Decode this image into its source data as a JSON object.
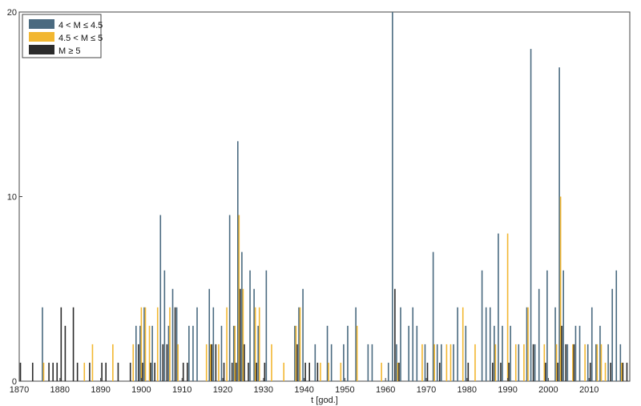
{
  "chart_data": {
    "type": "bar",
    "title": "",
    "xlabel": "t [god.]",
    "ylabel": "",
    "xlim": [
      1870,
      2020
    ],
    "ylim": [
      0,
      20
    ],
    "xticks": [
      1870,
      1880,
      1890,
      1900,
      1910,
      1920,
      1930,
      1940,
      1950,
      1960,
      1970,
      1980,
      1990,
      2000,
      2010
    ],
    "yticks": [
      0,
      10,
      20
    ],
    "grid": false,
    "legend_position": "top-left",
    "series": [
      {
        "name": "4 < M ≤ 4.5",
        "color": "#4a6a80",
        "points": [
          {
            "x": 1876,
            "y": 4
          },
          {
            "x": 1899,
            "y": 3
          },
          {
            "x": 1900,
            "y": 3
          },
          {
            "x": 1901,
            "y": 4
          },
          {
            "x": 1903,
            "y": 3
          },
          {
            "x": 1905,
            "y": 9
          },
          {
            "x": 1906,
            "y": 6
          },
          {
            "x": 1907,
            "y": 3
          },
          {
            "x": 1908,
            "y": 5
          },
          {
            "x": 1909,
            "y": 4
          },
          {
            "x": 1912,
            "y": 3
          },
          {
            "x": 1913,
            "y": 3
          },
          {
            "x": 1914,
            "y": 4
          },
          {
            "x": 1917,
            "y": 5
          },
          {
            "x": 1918,
            "y": 4
          },
          {
            "x": 1920,
            "y": 3
          },
          {
            "x": 1922,
            "y": 9
          },
          {
            "x": 1923,
            "y": 3
          },
          {
            "x": 1924,
            "y": 13
          },
          {
            "x": 1925,
            "y": 7
          },
          {
            "x": 1927,
            "y": 6
          },
          {
            "x": 1928,
            "y": 5
          },
          {
            "x": 1929,
            "y": 3
          },
          {
            "x": 1931,
            "y": 6
          },
          {
            "x": 1938,
            "y": 3
          },
          {
            "x": 1939,
            "y": 4
          },
          {
            "x": 1940,
            "y": 5
          },
          {
            "x": 1943,
            "y": 2
          },
          {
            "x": 1946,
            "y": 3
          },
          {
            "x": 1947,
            "y": 2
          },
          {
            "x": 1950,
            "y": 2
          },
          {
            "x": 1951,
            "y": 3
          },
          {
            "x": 1953,
            "y": 4
          },
          {
            "x": 1956,
            "y": 2
          },
          {
            "x": 1957,
            "y": 2
          },
          {
            "x": 1961,
            "y": 1
          },
          {
            "x": 1962,
            "y": 20
          },
          {
            "x": 1963,
            "y": 2
          },
          {
            "x": 1964,
            "y": 4
          },
          {
            "x": 1966,
            "y": 3
          },
          {
            "x": 1967,
            "y": 4
          },
          {
            "x": 1968,
            "y": 3
          },
          {
            "x": 1970,
            "y": 2
          },
          {
            "x": 1972,
            "y": 7
          },
          {
            "x": 1973,
            "y": 2
          },
          {
            "x": 1974,
            "y": 2
          },
          {
            "x": 1977,
            "y": 2
          },
          {
            "x": 1978,
            "y": 4
          },
          {
            "x": 1980,
            "y": 3
          },
          {
            "x": 1984,
            "y": 6
          },
          {
            "x": 1985,
            "y": 4
          },
          {
            "x": 1986,
            "y": 4
          },
          {
            "x": 1987,
            "y": 3
          },
          {
            "x": 1988,
            "y": 8
          },
          {
            "x": 1989,
            "y": 3
          },
          {
            "x": 1991,
            "y": 3
          },
          {
            "x": 1993,
            "y": 2
          },
          {
            "x": 1995,
            "y": 4
          },
          {
            "x": 1996,
            "y": 18
          },
          {
            "x": 1997,
            "y": 2
          },
          {
            "x": 1998,
            "y": 5
          },
          {
            "x": 2000,
            "y": 6
          },
          {
            "x": 2002,
            "y": 4
          },
          {
            "x": 2003,
            "y": 17
          },
          {
            "x": 2004,
            "y": 6
          },
          {
            "x": 2005,
            "y": 2
          },
          {
            "x": 2007,
            "y": 3
          },
          {
            "x": 2008,
            "y": 3
          },
          {
            "x": 2010,
            "y": 2
          },
          {
            "x": 2011,
            "y": 4
          },
          {
            "x": 2012,
            "y": 2
          },
          {
            "x": 2013,
            "y": 3
          },
          {
            "x": 2015,
            "y": 2
          },
          {
            "x": 2016,
            "y": 5
          },
          {
            "x": 2017,
            "y": 6
          },
          {
            "x": 2018,
            "y": 2
          }
        ]
      },
      {
        "name": "4.5 < M ≤ 5",
        "color": "#f2b731",
        "points": [
          {
            "x": 1876,
            "y": 1
          },
          {
            "x": 1886,
            "y": 1
          },
          {
            "x": 1888,
            "y": 2
          },
          {
            "x": 1893,
            "y": 2
          },
          {
            "x": 1898,
            "y": 2
          },
          {
            "x": 1900,
            "y": 4
          },
          {
            "x": 1901,
            "y": 4
          },
          {
            "x": 1902,
            "y": 3
          },
          {
            "x": 1904,
            "y": 4
          },
          {
            "x": 1907,
            "y": 4
          },
          {
            "x": 1909,
            "y": 2
          },
          {
            "x": 1916,
            "y": 2
          },
          {
            "x": 1917,
            "y": 2
          },
          {
            "x": 1919,
            "y": 2
          },
          {
            "x": 1921,
            "y": 4
          },
          {
            "x": 1923,
            "y": 3
          },
          {
            "x": 1924,
            "y": 9
          },
          {
            "x": 1925,
            "y": 5
          },
          {
            "x": 1928,
            "y": 4
          },
          {
            "x": 1929,
            "y": 4
          },
          {
            "x": 1932,
            "y": 2
          },
          {
            "x": 1935,
            "y": 1
          },
          {
            "x": 1938,
            "y": 3
          },
          {
            "x": 1939,
            "y": 4
          },
          {
            "x": 1944,
            "y": 1
          },
          {
            "x": 1946,
            "y": 1
          },
          {
            "x": 1949,
            "y": 1
          },
          {
            "x": 1953,
            "y": 3
          },
          {
            "x": 1959,
            "y": 1
          },
          {
            "x": 1963,
            "y": 1
          },
          {
            "x": 1969,
            "y": 2
          },
          {
            "x": 1972,
            "y": 2
          },
          {
            "x": 1975,
            "y": 2
          },
          {
            "x": 1976,
            "y": 2
          },
          {
            "x": 1979,
            "y": 4
          },
          {
            "x": 1982,
            "y": 2
          },
          {
            "x": 1987,
            "y": 2
          },
          {
            "x": 1990,
            "y": 8
          },
          {
            "x": 1992,
            "y": 2
          },
          {
            "x": 1994,
            "y": 2
          },
          {
            "x": 1995,
            "y": 4
          },
          {
            "x": 1999,
            "y": 2
          },
          {
            "x": 2002,
            "y": 2
          },
          {
            "x": 2003,
            "y": 10
          },
          {
            "x": 2006,
            "y": 2
          },
          {
            "x": 2009,
            "y": 2
          },
          {
            "x": 2012,
            "y": 2
          },
          {
            "x": 2013,
            "y": 2
          },
          {
            "x": 2014,
            "y": 1
          },
          {
            "x": 2018,
            "y": 1
          }
        ]
      },
      {
        "name": "M ≥ 5",
        "color": "#2b2b2b",
        "points": [
          {
            "x": 1870,
            "y": 1
          },
          {
            "x": 1873,
            "y": 1
          },
          {
            "x": 1877,
            "y": 1
          },
          {
            "x": 1878,
            "y": 1
          },
          {
            "x": 1879,
            "y": 1
          },
          {
            "x": 1880,
            "y": 4
          },
          {
            "x": 1881,
            "y": 3
          },
          {
            "x": 1883,
            "y": 4
          },
          {
            "x": 1884,
            "y": 1
          },
          {
            "x": 1887,
            "y": 1
          },
          {
            "x": 1890,
            "y": 1
          },
          {
            "x": 1891,
            "y": 1
          },
          {
            "x": 1894,
            "y": 1
          },
          {
            "x": 1897,
            "y": 1
          },
          {
            "x": 1899,
            "y": 2
          },
          {
            "x": 1900,
            "y": 1
          },
          {
            "x": 1902,
            "y": 1
          },
          {
            "x": 1903,
            "y": 1
          },
          {
            "x": 1905,
            "y": 2
          },
          {
            "x": 1906,
            "y": 2
          },
          {
            "x": 1908,
            "y": 4
          },
          {
            "x": 1910,
            "y": 1
          },
          {
            "x": 1911,
            "y": 1
          },
          {
            "x": 1917,
            "y": 2
          },
          {
            "x": 1918,
            "y": 2
          },
          {
            "x": 1920,
            "y": 1
          },
          {
            "x": 1922,
            "y": 1
          },
          {
            "x": 1923,
            "y": 1
          },
          {
            "x": 1924,
            "y": 5
          },
          {
            "x": 1925,
            "y": 2
          },
          {
            "x": 1926,
            "y": 1
          },
          {
            "x": 1928,
            "y": 1
          },
          {
            "x": 1930,
            "y": 1
          },
          {
            "x": 1938,
            "y": 2
          },
          {
            "x": 1940,
            "y": 1
          },
          {
            "x": 1941,
            "y": 1
          },
          {
            "x": 1943,
            "y": 1
          },
          {
            "x": 1962,
            "y": 5
          },
          {
            "x": 1963,
            "y": 1
          },
          {
            "x": 1970,
            "y": 1
          },
          {
            "x": 1973,
            "y": 1
          },
          {
            "x": 1980,
            "y": 1
          },
          {
            "x": 1986,
            "y": 1
          },
          {
            "x": 1988,
            "y": 1
          },
          {
            "x": 1990,
            "y": 1
          },
          {
            "x": 1996,
            "y": 2
          },
          {
            "x": 1999,
            "y": 1
          },
          {
            "x": 2002,
            "y": 1
          },
          {
            "x": 2003,
            "y": 3
          },
          {
            "x": 2004,
            "y": 2
          },
          {
            "x": 2006,
            "y": 2
          },
          {
            "x": 2010,
            "y": 1
          },
          {
            "x": 2015,
            "y": 1
          },
          {
            "x": 2018,
            "y": 1
          },
          {
            "x": 2019,
            "y": 1
          }
        ]
      }
    ]
  }
}
